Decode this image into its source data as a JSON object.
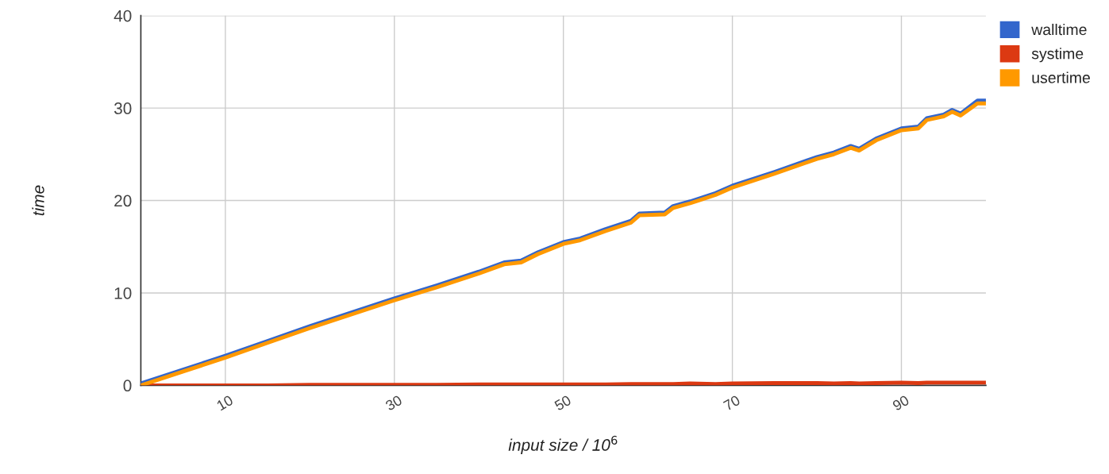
{
  "chart_data": {
    "type": "line",
    "xlabel": "input size / 10$^{6}$",
    "ylabel": "time",
    "x": [
      0,
      5,
      8,
      10,
      15,
      20,
      25,
      30,
      35,
      40,
      43,
      45,
      47,
      50,
      52,
      55,
      58,
      59,
      62,
      63,
      65,
      68,
      70,
      75,
      80,
      82,
      84,
      85,
      87,
      90,
      92,
      93,
      95,
      96,
      97,
      99,
      100
    ],
    "series": [
      {
        "name": "walltime",
        "color": "#3366cc",
        "values": [
          0.2,
          1.7,
          2.6,
          3.2,
          4.8,
          6.4,
          7.9,
          9.4,
          10.8,
          12.3,
          13.3,
          13.5,
          14.4,
          15.5,
          15.9,
          16.9,
          17.8,
          18.6,
          18.7,
          19.4,
          19.9,
          20.8,
          21.6,
          23.1,
          24.7,
          25.2,
          25.9,
          25.6,
          26.7,
          27.8,
          28.0,
          28.9,
          29.3,
          29.8,
          29.4,
          30.8,
          30.8
        ]
      },
      {
        "name": "systime",
        "color": "#dc3912",
        "values": [
          0.0,
          0.0,
          0.0,
          0.0,
          0.0,
          0.05,
          0.05,
          0.05,
          0.05,
          0.1,
          0.1,
          0.1,
          0.1,
          0.1,
          0.1,
          0.1,
          0.15,
          0.15,
          0.15,
          0.15,
          0.2,
          0.15,
          0.2,
          0.25,
          0.25,
          0.2,
          0.25,
          0.2,
          0.25,
          0.3,
          0.25,
          0.3,
          0.3,
          0.3,
          0.3,
          0.3,
          0.3
        ]
      },
      {
        "name": "usertime",
        "color": "#ff9900",
        "values": [
          0.0,
          1.5,
          2.4,
          3.0,
          4.6,
          6.2,
          7.7,
          9.2,
          10.6,
          12.1,
          13.1,
          13.3,
          14.2,
          15.3,
          15.7,
          16.7,
          17.6,
          18.4,
          18.5,
          19.2,
          19.7,
          20.6,
          21.4,
          22.9,
          24.5,
          25.0,
          25.7,
          25.4,
          26.5,
          27.6,
          27.8,
          28.7,
          29.1,
          29.6,
          29.2,
          30.5,
          30.5
        ]
      }
    ],
    "xlim": [
      0,
      100
    ],
    "xticks": [
      10,
      30,
      50,
      70,
      90
    ],
    "ylim": [
      0,
      40
    ],
    "yticks": [
      0,
      10,
      20,
      30,
      40
    ],
    "grid": true,
    "legend": "top right",
    "marker": "none",
    "line_style": "solid"
  }
}
